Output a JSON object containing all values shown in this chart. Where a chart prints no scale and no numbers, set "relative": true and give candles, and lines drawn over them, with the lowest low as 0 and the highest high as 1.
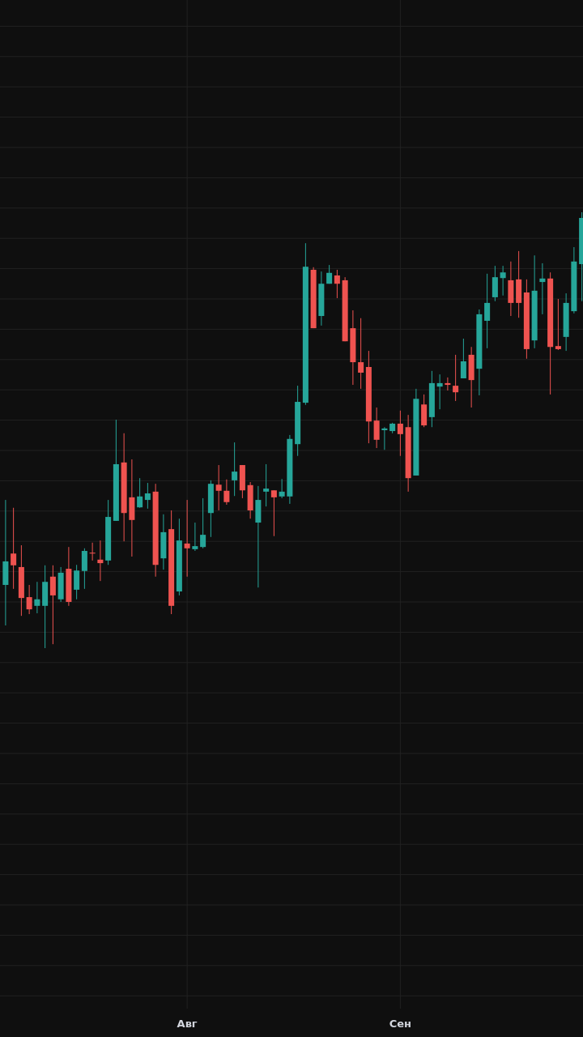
{
  "chart_data": {
    "type": "candlestick",
    "relative": true,
    "grid": true,
    "categories": [
      null,
      null,
      null,
      null,
      null,
      null,
      null,
      null,
      null,
      null,
      null,
      null,
      null,
      null,
      null,
      null,
      null,
      null,
      null,
      null,
      null,
      null,
      null,
      "Авг",
      null,
      null,
      null,
      null,
      null,
      null,
      null,
      null,
      null,
      null,
      null,
      null,
      null,
      null,
      null,
      null,
      null,
      null,
      null,
      null,
      null,
      null,
      null,
      null,
      null,
      null,
      "Сен",
      null,
      null,
      null,
      null,
      null,
      null,
      null,
      null,
      null,
      null,
      null,
      null,
      null,
      null,
      null,
      null,
      null,
      null,
      null,
      null,
      null,
      null,
      null
    ],
    "ohlc": [
      [
        0.145,
        0.34,
        0.052,
        0.199
      ],
      [
        0.217,
        0.322,
        0.136,
        0.19
      ],
      [
        0.186,
        0.236,
        0.074,
        0.115
      ],
      [
        0.117,
        0.145,
        0.078,
        0.089
      ],
      [
        0.097,
        0.152,
        0.08,
        0.112
      ],
      [
        0.097,
        0.19,
        0,
        0.152
      ],
      [
        0.164,
        0.19,
        0.009,
        0.121
      ],
      [
        0.112,
        0.186,
        0.106,
        0.173
      ],
      [
        0.182,
        0.232,
        0.097,
        0.106
      ],
      [
        0.134,
        0.191,
        0.112,
        0.178
      ],
      [
        0.177,
        0.229,
        0.136,
        0.223
      ],
      [
        0.219,
        0.242,
        0.201,
        0.217
      ],
      [
        0.203,
        0.247,
        0.154,
        0.195
      ],
      [
        0.201,
        0.34,
        0.191,
        0.301
      ],
      [
        0.292,
        0.524,
        0.292,
        0.422
      ],
      [
        0.426,
        0.493,
        0.245,
        0.31
      ],
      [
        0.346,
        0.433,
        0.21,
        0.294
      ],
      [
        0.323,
        0.39,
        0.322,
        0.348
      ],
      [
        0.34,
        0.379,
        0.32,
        0.355
      ],
      [
        0.359,
        0.377,
        0.164,
        0.191
      ],
      [
        0.206,
        0.307,
        0.18,
        0.266
      ],
      [
        0.273,
        0.316,
        0.078,
        0.097
      ],
      [
        0.13,
        0.297,
        0.121,
        0.247
      ],
      [
        0.24,
        0.34,
        0.164,
        0.229
      ],
      [
        0.227,
        0.288,
        0.223,
        0.234
      ],
      [
        0.232,
        0.344,
        0.229,
        0.26
      ],
      [
        0.31,
        0.385,
        0.255,
        0.377
      ],
      [
        0.375,
        0.42,
        0.316,
        0.361
      ],
      [
        0.361,
        0.387,
        0.329,
        0.335
      ],
      [
        0.385,
        0.472,
        0.349,
        0.405
      ],
      [
        0.42,
        0.42,
        0.344,
        0.362
      ],
      [
        0.374,
        0.381,
        0.297,
        0.316
      ],
      [
        0.288,
        0.372,
        0.139,
        0.34
      ],
      [
        0.359,
        0.422,
        0.325,
        0.366
      ],
      [
        0.362,
        0.362,
        0.257,
        0.346
      ],
      [
        0.348,
        0.388,
        0.344,
        0.359
      ],
      [
        0.348,
        0.489,
        0.331,
        0.48
      ],
      [
        0.468,
        0.602,
        0.441,
        0.565
      ],
      [
        0.563,
        0.929,
        0.558,
        0.875
      ],
      [
        0.868,
        0.874,
        0.734,
        0.734
      ],
      [
        0.762,
        0.864,
        0.74,
        0.836
      ],
      [
        0.836,
        0.879,
        0.836,
        0.861
      ],
      [
        0.855,
        0.868,
        0.803,
        0.836
      ],
      [
        0.844,
        0.851,
        0.704,
        0.704
      ],
      [
        0.734,
        0.775,
        0.604,
        0.656
      ],
      [
        0.656,
        0.757,
        0.595,
        0.632
      ],
      [
        0.645,
        0.682,
        0.47,
        0.52
      ],
      [
        0.522,
        0.552,
        0.459,
        0.478
      ],
      [
        0.5,
        0.507,
        0.455,
        0.504
      ],
      [
        0.498,
        0.517,
        0.493,
        0.515
      ],
      [
        0.515,
        0.545,
        0.441,
        0.491
      ],
      [
        0.507,
        0.535,
        0.359,
        0.39
      ],
      [
        0.396,
        0.595,
        0.396,
        0.572
      ],
      [
        0.559,
        0.582,
        0.507,
        0.511
      ],
      [
        0.53,
        0.636,
        0.507,
        0.608
      ],
      [
        0.6,
        0.628,
        0.548,
        0.608
      ],
      [
        0.608,
        0.621,
        0.591,
        0.604
      ],
      [
        0.602,
        0.673,
        0.567,
        0.587
      ],
      [
        0.619,
        0.71,
        0.619,
        0.658
      ],
      [
        0.673,
        0.691,
        0.552,
        0.615
      ],
      [
        0.641,
        0.777,
        0.58,
        0.766
      ],
      [
        0.751,
        0.859,
        0.688,
        0.792
      ],
      [
        0.805,
        0.877,
        0.796,
        0.851
      ],
      [
        0.849,
        0.877,
        0.809,
        0.862
      ],
      [
        0.844,
        0.887,
        0.762,
        0.792
      ],
      [
        0.846,
        0.911,
        0.758,
        0.792
      ],
      [
        0.816,
        0.846,
        0.664,
        0.686
      ],
      [
        0.706,
        0.901,
        0.688,
        0.82
      ],
      [
        0.84,
        0.883,
        0.766,
        0.848
      ],
      [
        0.848,
        0.862,
        0.582,
        0.691
      ],
      [
        0.693,
        0.801,
        0.684,
        0.686
      ],
      [
        0.714,
        0.814,
        0.682,
        0.792
      ],
      [
        0.773,
        0.92,
        0.768,
        0.887
      ],
      [
        0.881,
        1,
        0.796,
        0.987
      ]
    ],
    "colors": [
      "#26a69a",
      "#ef5350",
      "#ef5350",
      "#ef5350",
      "#26a69a",
      "#26a69a",
      "#ef5350",
      "#26a69a",
      "#ef5350",
      "#26a69a",
      "#26a69a",
      "#ef5350",
      "#ef5350",
      "#26a69a",
      "#26a69a",
      "#ef5350",
      "#ef5350",
      "#26a69a",
      "#26a69a",
      "#ef5350",
      "#26a69a",
      "#ef5350",
      "#26a69a",
      "#ef5350",
      "#26a69a",
      "#26a69a",
      "#26a69a",
      "#ef5350",
      "#ef5350",
      "#26a69a",
      "#ef5350",
      "#ef5350",
      "#26a69a",
      "#26a69a",
      "#ef5350",
      "#26a69a",
      "#26a69a",
      "#26a69a",
      "#26a69a",
      "#ef5350",
      "#26a69a",
      "#26a69a",
      "#ef5350",
      "#ef5350",
      "#ef5350",
      "#ef5350",
      "#ef5350",
      "#ef5350",
      "#26a69a",
      "#26a69a",
      "#ef5350",
      "#ef5350",
      "#26a69a",
      "#ef5350",
      "#26a69a",
      "#26a69a",
      "#ef5350",
      "#ef5350",
      "#26a69a",
      "#ef5350",
      "#26a69a",
      "#26a69a",
      "#26a69a",
      "#26a69a",
      "#ef5350",
      "#ef5350",
      "#ef5350",
      "#26a69a",
      "#26a69a",
      "#ef5350",
      "#ef5350",
      "#26a69a",
      "#26a69a",
      "#26a69a"
    ]
  }
}
